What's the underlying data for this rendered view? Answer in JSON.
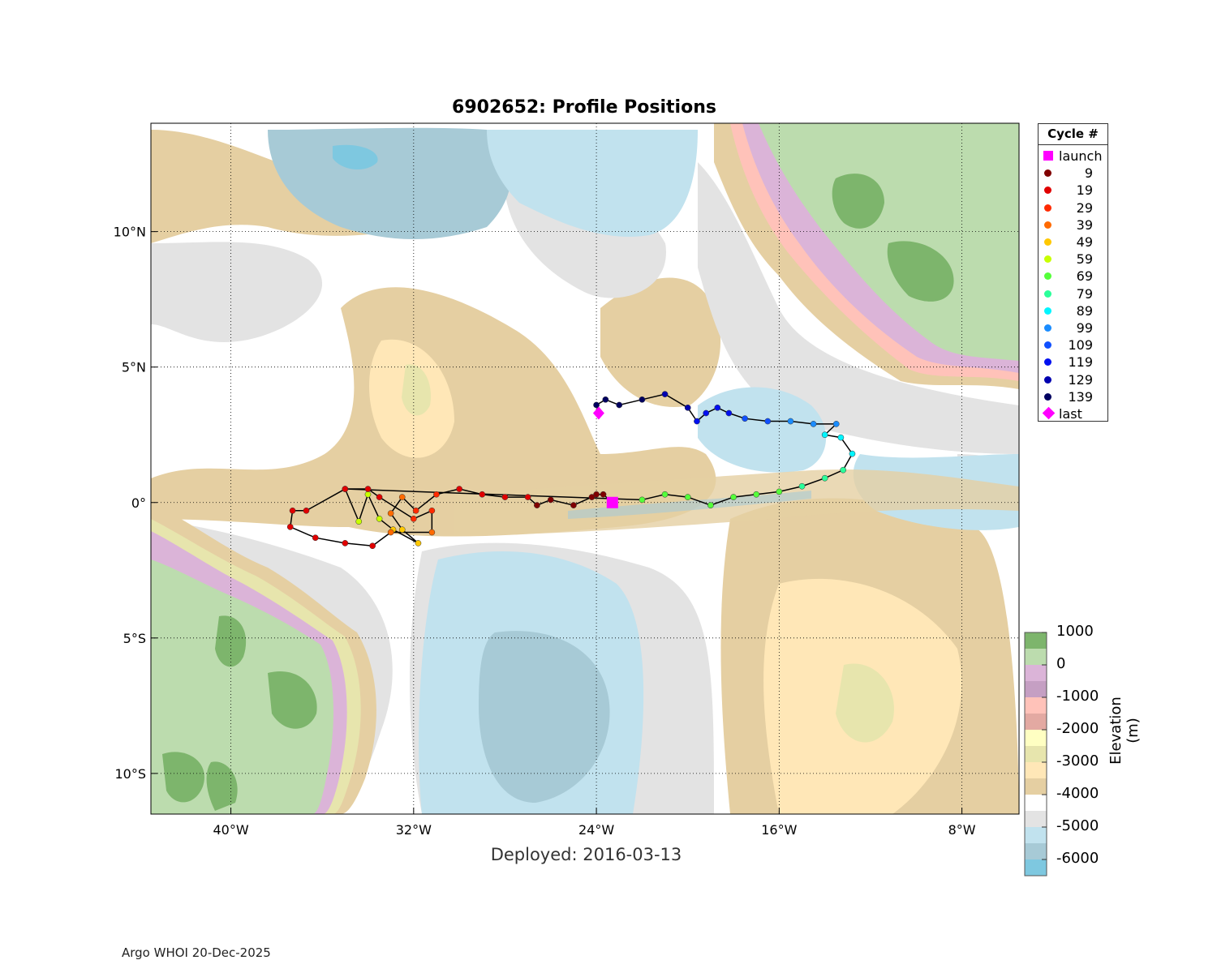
{
  "title": "6902652: Profile Positions",
  "deployed": "Deployed: 2016-03-13",
  "footer": "Argo WHOI 20-Dec-2025",
  "map": {
    "lon_range": [
      -43.5,
      -5.5
    ],
    "lat_range": [
      -11.5,
      14
    ],
    "lon_ticks": [
      {
        "v": -40,
        "label": "40°W"
      },
      {
        "v": -32,
        "label": "32°W"
      },
      {
        "v": -24,
        "label": "24°W"
      },
      {
        "v": -16,
        "label": "16°W"
      },
      {
        "v": -8,
        "label": "8°W"
      }
    ],
    "lat_ticks": [
      {
        "v": 10,
        "label": "10°N"
      },
      {
        "v": 5,
        "label": "5°N"
      },
      {
        "v": 0,
        "label": "0°"
      },
      {
        "v": -5,
        "label": "5°S"
      },
      {
        "v": -10,
        "label": "10°S"
      }
    ],
    "grid": true
  },
  "legend": {
    "title": "Cycle #",
    "launch_label": "launch",
    "last_label": "last",
    "launch_color": "#ff00ff",
    "last_color": "#ff00ff",
    "cycles": [
      {
        "label": "9",
        "color": "#800000"
      },
      {
        "label": "19",
        "color": "#e00000"
      },
      {
        "label": "29",
        "color": "#ff2a00"
      },
      {
        "label": "39",
        "color": "#ff6a00"
      },
      {
        "label": "49",
        "color": "#ffc800"
      },
      {
        "label": "59",
        "color": "#c8ff00"
      },
      {
        "label": "69",
        "color": "#55ff3a"
      },
      {
        "label": "79",
        "color": "#2aff9a"
      },
      {
        "label": "89",
        "color": "#00f5ff"
      },
      {
        "label": "99",
        "color": "#1a8cff"
      },
      {
        "label": "109",
        "color": "#1050ff"
      },
      {
        "label": "119",
        "color": "#0010f0"
      },
      {
        "label": "129",
        "color": "#0000b0"
      },
      {
        "label": "139",
        "color": "#000060"
      }
    ]
  },
  "colorbar": {
    "title": "Elevation (m)",
    "tick_labels": [
      "1000",
      "0",
      "-1000",
      "-2000",
      "-3000",
      "-4000",
      "-5000",
      "-6000"
    ],
    "levels": [
      1000,
      0,
      -1000,
      -2000,
      -3000,
      -4000,
      -5000,
      -6000
    ],
    "colors": [
      "#7db56c",
      "#bcdcae",
      "#dbb4d8",
      "#c59fc3",
      "#ffc2b9",
      "#e3a9a2",
      "#ffffc2",
      "#e7e5ad",
      "#ffe7b7",
      "#e5cfa2",
      "#ffffff",
      "#e3e3e3",
      "#c1e2ee",
      "#a7cad6",
      "#7ec8e0"
    ]
  },
  "chart_data": {
    "type": "scatter",
    "launch": {
      "lon": -23.3,
      "lat": 0.0
    },
    "last": {
      "lon": -23.9,
      "lat": 3.3
    },
    "track": [
      {
        "lon": -23.3,
        "lat": 0.0,
        "c": 0
      },
      {
        "lon": -23.7,
        "lat": 0.3,
        "c": 0
      },
      {
        "lon": -24.0,
        "lat": 0.3,
        "c": 0
      },
      {
        "lon": -24.2,
        "lat": 0.2,
        "c": 0
      },
      {
        "lon": -25.0,
        "lat": -0.1,
        "c": 0
      },
      {
        "lon": -26.0,
        "lat": 0.1,
        "c": 0
      },
      {
        "lon": -26.6,
        "lat": -0.1,
        "c": 0
      },
      {
        "lon": -27.0,
        "lat": 0.2,
        "c": 1
      },
      {
        "lon": -28.0,
        "lat": 0.2,
        "c": 1
      },
      {
        "lon": -29.0,
        "lat": 0.3,
        "c": 1
      },
      {
        "lon": -30.0,
        "lat": 0.5,
        "c": 1
      },
      {
        "lon": -31.0,
        "lat": 0.3,
        "c": 2
      },
      {
        "lon": -31.9,
        "lat": -0.3,
        "c": 2
      },
      {
        "lon": -32.5,
        "lat": 0.2,
        "c": 3
      },
      {
        "lon": -33.0,
        "lat": -0.4,
        "c": 3
      },
      {
        "lon": -32.5,
        "lat": -1.0,
        "c": 4
      },
      {
        "lon": -31.8,
        "lat": -1.5,
        "c": 4
      },
      {
        "lon": -32.9,
        "lat": -1.0,
        "c": 4
      },
      {
        "lon": -33.5,
        "lat": -0.6,
        "c": 5
      },
      {
        "lon": -34.0,
        "lat": 0.3,
        "c": 5
      },
      {
        "lon": -34.4,
        "lat": -0.7,
        "c": 5
      },
      {
        "lon": -35.0,
        "lat": 0.5,
        "c": 1
      },
      {
        "lon": -34.0,
        "lat": 0.5,
        "c": 1
      },
      {
        "lon": -33.5,
        "lat": 0.2,
        "c": 1
      },
      {
        "lon": -32.0,
        "lat": -0.6,
        "c": 2
      },
      {
        "lon": -31.2,
        "lat": -0.3,
        "c": 2
      },
      {
        "lon": -31.2,
        "lat": -1.1,
        "c": 3
      },
      {
        "lon": -33.0,
        "lat": -1.1,
        "c": 3
      },
      {
        "lon": -33.8,
        "lat": -1.6,
        "c": 1
      },
      {
        "lon": -35.0,
        "lat": -1.5,
        "c": 1
      },
      {
        "lon": -36.3,
        "lat": -1.3,
        "c": 1
      },
      {
        "lon": -37.4,
        "lat": -0.9,
        "c": 1
      },
      {
        "lon": -37.3,
        "lat": -0.3,
        "c": 1
      },
      {
        "lon": -36.7,
        "lat": -0.3,
        "c": 1
      },
      {
        "lon": -35.0,
        "lat": 0.5,
        "c": 1
      },
      {
        "lon": -22.0,
        "lat": 0.1,
        "c": 6
      },
      {
        "lon": -21.0,
        "lat": 0.3,
        "c": 6
      },
      {
        "lon": -20.0,
        "lat": 0.2,
        "c": 6
      },
      {
        "lon": -19.0,
        "lat": -0.1,
        "c": 6
      },
      {
        "lon": -18.0,
        "lat": 0.2,
        "c": 6
      },
      {
        "lon": -17.0,
        "lat": 0.3,
        "c": 6
      },
      {
        "lon": -16.0,
        "lat": 0.4,
        "c": 6
      },
      {
        "lon": -15.0,
        "lat": 0.6,
        "c": 7
      },
      {
        "lon": -14.0,
        "lat": 0.9,
        "c": 7
      },
      {
        "lon": -13.2,
        "lat": 1.2,
        "c": 7
      },
      {
        "lon": -12.8,
        "lat": 1.8,
        "c": 8
      },
      {
        "lon": -13.3,
        "lat": 2.4,
        "c": 8
      },
      {
        "lon": -14.0,
        "lat": 2.5,
        "c": 8
      },
      {
        "lon": -13.5,
        "lat": 2.9,
        "c": 9
      },
      {
        "lon": -14.5,
        "lat": 2.9,
        "c": 9
      },
      {
        "lon": -15.5,
        "lat": 3.0,
        "c": 9
      },
      {
        "lon": -16.5,
        "lat": 3.0,
        "c": 10
      },
      {
        "lon": -17.5,
        "lat": 3.1,
        "c": 10
      },
      {
        "lon": -18.2,
        "lat": 3.3,
        "c": 11
      },
      {
        "lon": -18.7,
        "lat": 3.5,
        "c": 11
      },
      {
        "lon": -19.2,
        "lat": 3.3,
        "c": 11
      },
      {
        "lon": -19.6,
        "lat": 3.0,
        "c": 11
      },
      {
        "lon": -20.0,
        "lat": 3.5,
        "c": 12
      },
      {
        "lon": -21.0,
        "lat": 4.0,
        "c": 12
      },
      {
        "lon": -22.0,
        "lat": 3.8,
        "c": 13
      },
      {
        "lon": -23.0,
        "lat": 3.6,
        "c": 13
      },
      {
        "lon": -23.6,
        "lat": 3.8,
        "c": 13
      },
      {
        "lon": -24.0,
        "lat": 3.6,
        "c": 13
      },
      {
        "lon": -23.9,
        "lat": 3.3,
        "c": 13
      }
    ]
  }
}
